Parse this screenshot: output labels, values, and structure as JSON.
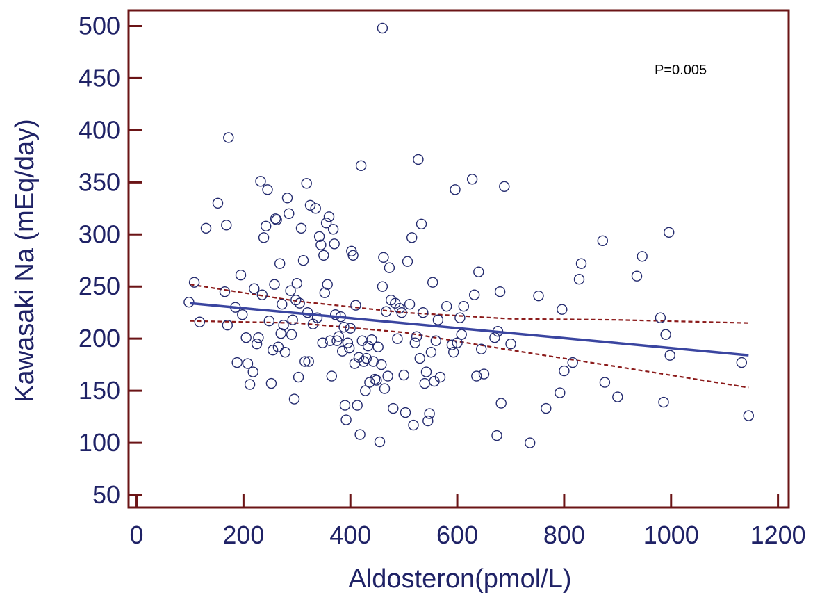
{
  "chart_data": {
    "type": "scatter",
    "xlabel": "Aldosteron(pmol/L)",
    "ylabel": "Kawasaki Na (mEq/day)",
    "annotation": "P=0.005",
    "xlim": [
      -15,
      1220
    ],
    "ylim": [
      38,
      515
    ],
    "xticks": [
      "0",
      "200",
      "400",
      "600",
      "800",
      "1000",
      "1200"
    ],
    "yticks": [
      "50",
      "100",
      "150",
      "200",
      "250",
      "300",
      "350",
      "400",
      "450",
      "500"
    ],
    "grid": false,
    "colors": {
      "frame": "#6b1416",
      "points": "#232a6e",
      "fit": "#3a45a0",
      "ci": "#8b1a1a",
      "text": "#1f2266"
    },
    "fit_line": {
      "x": [
        100,
        1145
      ],
      "y": [
        234,
        184
      ]
    },
    "ci_upper": {
      "x": [
        100,
        300,
        500,
        700,
        900,
        1145
      ],
      "y": [
        252,
        236,
        225,
        219,
        218,
        215
      ]
    },
    "ci_lower": {
      "x": [
        100,
        300,
        500,
        700,
        900,
        1145
      ],
      "y": [
        217,
        215,
        206,
        189,
        173,
        153
      ]
    },
    "points": [
      [
        98,
        235
      ],
      [
        108,
        254
      ],
      [
        130,
        306
      ],
      [
        152,
        330
      ],
      [
        168,
        309
      ],
      [
        172,
        393
      ],
      [
        188,
        177
      ],
      [
        460,
        498
      ],
      [
        118,
        216
      ],
      [
        165,
        245
      ],
      [
        170,
        213
      ],
      [
        185,
        230
      ],
      [
        195,
        261
      ],
      [
        198,
        223
      ],
      [
        205,
        201
      ],
      [
        208,
        176
      ],
      [
        212,
        156
      ],
      [
        218,
        168
      ],
      [
        220,
        248
      ],
      [
        225,
        195
      ],
      [
        228,
        201
      ],
      [
        232,
        351
      ],
      [
        235,
        242
      ],
      [
        238,
        297
      ],
      [
        242,
        308
      ],
      [
        245,
        343
      ],
      [
        248,
        217
      ],
      [
        252,
        157
      ],
      [
        255,
        189
      ],
      [
        258,
        252
      ],
      [
        260,
        315
      ],
      [
        262,
        314
      ],
      [
        265,
        192
      ],
      [
        268,
        272
      ],
      [
        270,
        205
      ],
      [
        272,
        233
      ],
      [
        275,
        213
      ],
      [
        278,
        187
      ],
      [
        282,
        335
      ],
      [
        285,
        320
      ],
      [
        288,
        246
      ],
      [
        290,
        204
      ],
      [
        292,
        218
      ],
      [
        295,
        142
      ],
      [
        298,
        237
      ],
      [
        300,
        253
      ],
      [
        303,
        163
      ],
      [
        305,
        234
      ],
      [
        308,
        306
      ],
      [
        312,
        275
      ],
      [
        315,
        178
      ],
      [
        318,
        349
      ],
      [
        320,
        225
      ],
      [
        322,
        178
      ],
      [
        325,
        328
      ],
      [
        330,
        214
      ],
      [
        335,
        325
      ],
      [
        338,
        220
      ],
      [
        342,
        298
      ],
      [
        345,
        290
      ],
      [
        348,
        196
      ],
      [
        350,
        280
      ],
      [
        352,
        244
      ],
      [
        355,
        311
      ],
      [
        357,
        252
      ],
      [
        360,
        317
      ],
      [
        362,
        198
      ],
      [
        365,
        164
      ],
      [
        368,
        305
      ],
      [
        370,
        291
      ],
      [
        372,
        223
      ],
      [
        375,
        198
      ],
      [
        378,
        202
      ],
      [
        382,
        221
      ],
      [
        385,
        188
      ],
      [
        388,
        211
      ],
      [
        390,
        136
      ],
      [
        392,
        122
      ],
      [
        395,
        196
      ],
      [
        398,
        191
      ],
      [
        400,
        210
      ],
      [
        402,
        284
      ],
      [
        405,
        280
      ],
      [
        408,
        176
      ],
      [
        410,
        232
      ],
      [
        413,
        136
      ],
      [
        416,
        182
      ],
      [
        418,
        108
      ],
      [
        420,
        366
      ],
      [
        422,
        198
      ],
      [
        425,
        178
      ],
      [
        428,
        150
      ],
      [
        430,
        181
      ],
      [
        433,
        193
      ],
      [
        436,
        158
      ],
      [
        440,
        199
      ],
      [
        443,
        178
      ],
      [
        446,
        161
      ],
      [
        449,
        160
      ],
      [
        452,
        192
      ],
      [
        455,
        101
      ],
      [
        458,
        175
      ],
      [
        460,
        250
      ],
      [
        462,
        278
      ],
      [
        464,
        152
      ],
      [
        467,
        226
      ],
      [
        470,
        164
      ],
      [
        473,
        268
      ],
      [
        476,
        237
      ],
      [
        480,
        133
      ],
      [
        484,
        234
      ],
      [
        488,
        200
      ],
      [
        492,
        229
      ],
      [
        496,
        225
      ],
      [
        500,
        165
      ],
      [
        503,
        129
      ],
      [
        507,
        274
      ],
      [
        511,
        233
      ],
      [
        515,
        297
      ],
      [
        518,
        117
      ],
      [
        521,
        196
      ],
      [
        524,
        202
      ],
      [
        527,
        372
      ],
      [
        530,
        181
      ],
      [
        533,
        310
      ],
      [
        536,
        225
      ],
      [
        539,
        157
      ],
      [
        542,
        168
      ],
      [
        545,
        121
      ],
      [
        548,
        128
      ],
      [
        551,
        187
      ],
      [
        554,
        254
      ],
      [
        557,
        159
      ],
      [
        560,
        198
      ],
      [
        564,
        218
      ],
      [
        568,
        163
      ],
      [
        580,
        231
      ],
      [
        590,
        194
      ],
      [
        593,
        187
      ],
      [
        596,
        343
      ],
      [
        600,
        196
      ],
      [
        605,
        220
      ],
      [
        608,
        204
      ],
      [
        612,
        231
      ],
      [
        628,
        353
      ],
      [
        632,
        242
      ],
      [
        636,
        164
      ],
      [
        640,
        264
      ],
      [
        645,
        190
      ],
      [
        650,
        166
      ],
      [
        670,
        201
      ],
      [
        674,
        107
      ],
      [
        676,
        207
      ],
      [
        680,
        245
      ],
      [
        682,
        138
      ],
      [
        688,
        346
      ],
      [
        700,
        195
      ],
      [
        736,
        100
      ],
      [
        752,
        241
      ],
      [
        766,
        133
      ],
      [
        792,
        148
      ],
      [
        796,
        228
      ],
      [
        800,
        169
      ],
      [
        816,
        177
      ],
      [
        828,
        257
      ],
      [
        832,
        272
      ],
      [
        872,
        294
      ],
      [
        876,
        158
      ],
      [
        900,
        144
      ],
      [
        936,
        260
      ],
      [
        946,
        279
      ],
      [
        980,
        220
      ],
      [
        986,
        139
      ],
      [
        990,
        204
      ],
      [
        996,
        302
      ],
      [
        998,
        184
      ],
      [
        1132,
        177
      ],
      [
        1145,
        126
      ]
    ]
  }
}
